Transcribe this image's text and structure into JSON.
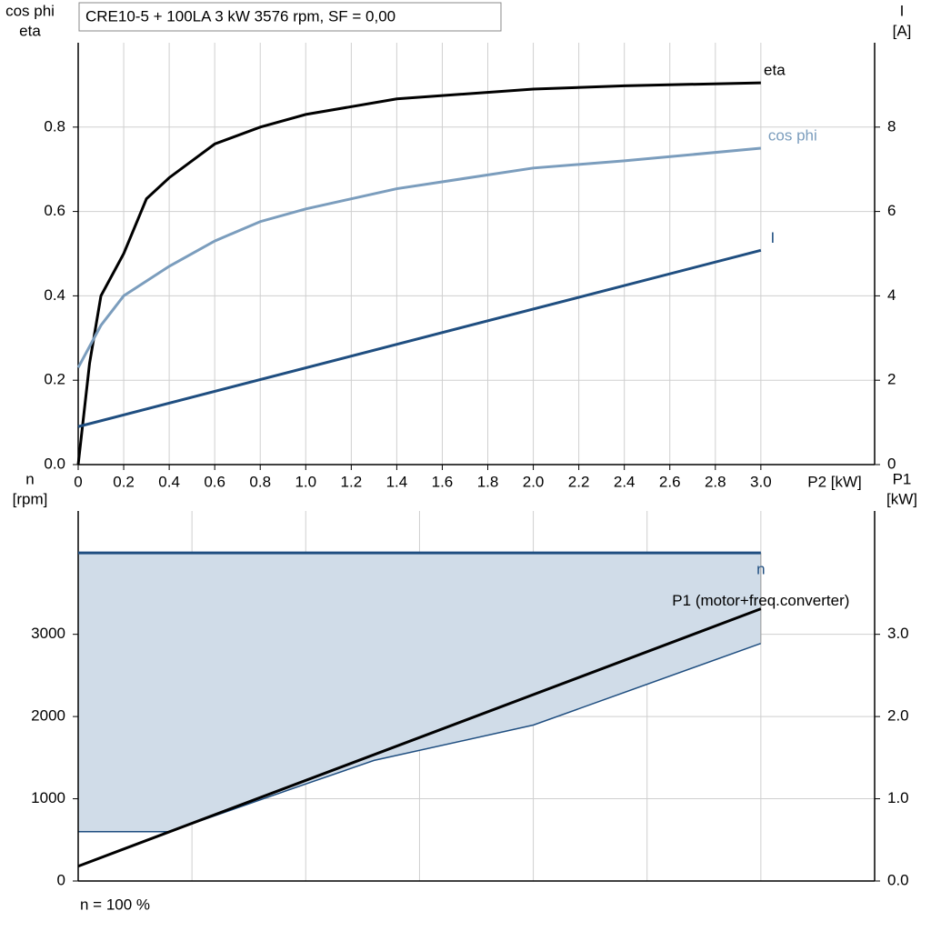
{
  "chart_data": [
    {
      "type": "line",
      "title": "CRE10-5 + 100LA   3 kW   3576 rpm, SF = 0,00",
      "ylabel": [
        "cos phi",
        "eta"
      ],
      "y2label": [
        "I",
        "[A]"
      ],
      "xlabel": "P2 [kW]",
      "xlim": [
        0,
        3.5
      ],
      "xticks": [
        0,
        0.2,
        0.4,
        0.6,
        0.8,
        {
          "value": 1,
          "label": "1.0"
        },
        1.2,
        1.4,
        1.6,
        1.8,
        {
          "value": 2,
          "label": "2.0"
        },
        2.2,
        2.4,
        2.6,
        2.8,
        {
          "value": 3,
          "label": "3.0"
        }
      ],
      "ylim": [
        0,
        1.0
      ],
      "yticks": [
        {
          "value": 0,
          "label": "0.0"
        },
        0.2,
        0.4,
        0.6,
        0.8
      ],
      "y2lim": [
        0,
        10
      ],
      "y2ticks": [
        0,
        2,
        4,
        6,
        8
      ],
      "grid": true,
      "series": [
        {
          "name": "eta",
          "color": "#000000",
          "x": [
            0,
            0.05,
            0.1,
            0.2,
            0.3,
            0.4,
            0.6,
            0.8,
            1.0,
            1.4,
            2.0,
            2.4,
            3.0
          ],
          "values": [
            0,
            0.24,
            0.4,
            0.5,
            0.63,
            0.68,
            0.76,
            0.8,
            0.83,
            0.867,
            0.89,
            0.898,
            0.905
          ]
        },
        {
          "name": "cos phi",
          "color": "#7b9dbd",
          "x": [
            0,
            0.1,
            0.2,
            0.4,
            0.6,
            0.8,
            1.0,
            1.4,
            2.0,
            2.4,
            3.0
          ],
          "values": [
            0.23,
            0.33,
            0.4,
            0.47,
            0.53,
            0.576,
            0.606,
            0.654,
            0.703,
            0.72,
            0.75
          ]
        },
        {
          "name": "I",
          "color": "#1f4e80",
          "axis": "y2",
          "x": [
            0,
            3.0
          ],
          "values": [
            0.9,
            5.08
          ]
        }
      ]
    },
    {
      "type": "line",
      "ylabel": [
        "n",
        "[rpm]"
      ],
      "y2label": [
        "P1",
        "[kW]"
      ],
      "xlim": [
        0,
        3.5
      ],
      "xgrid": [
        0,
        0.5,
        1,
        1.5,
        2,
        2.5,
        3
      ],
      "ylim": [
        0,
        4500
      ],
      "yticks": [
        0,
        1000,
        2000,
        3000
      ],
      "y2lim": [
        0,
        4.5
      ],
      "y2ticks": [
        {
          "value": 0,
          "label": "0.0"
        },
        {
          "value": 1,
          "label": "1.0"
        },
        {
          "value": 2,
          "label": "2.0"
        },
        {
          "value": 3,
          "label": "3.0"
        }
      ],
      "grid": true,
      "band": {
        "color": "#d0dce8",
        "x": [
          0,
          0.4,
          1.0,
          1.3,
          2.0,
          3.0
        ],
        "lower": [
          600,
          600,
          1180,
          1466,
          1896,
          2889
        ],
        "upper": [
          3990,
          3990,
          3990,
          3990,
          3990,
          3990
        ]
      },
      "series": [
        {
          "name": "n",
          "color": "#1f4e80",
          "x": [
            0,
            3.0
          ],
          "values": [
            3990,
            3990
          ]
        },
        {
          "name": "P1 (motor+freq.converter)",
          "color": "#000000",
          "axis": "y2",
          "x": [
            0,
            3.0
          ],
          "values": [
            0.18,
            3.31
          ]
        }
      ],
      "note": "n = 100 %"
    }
  ]
}
